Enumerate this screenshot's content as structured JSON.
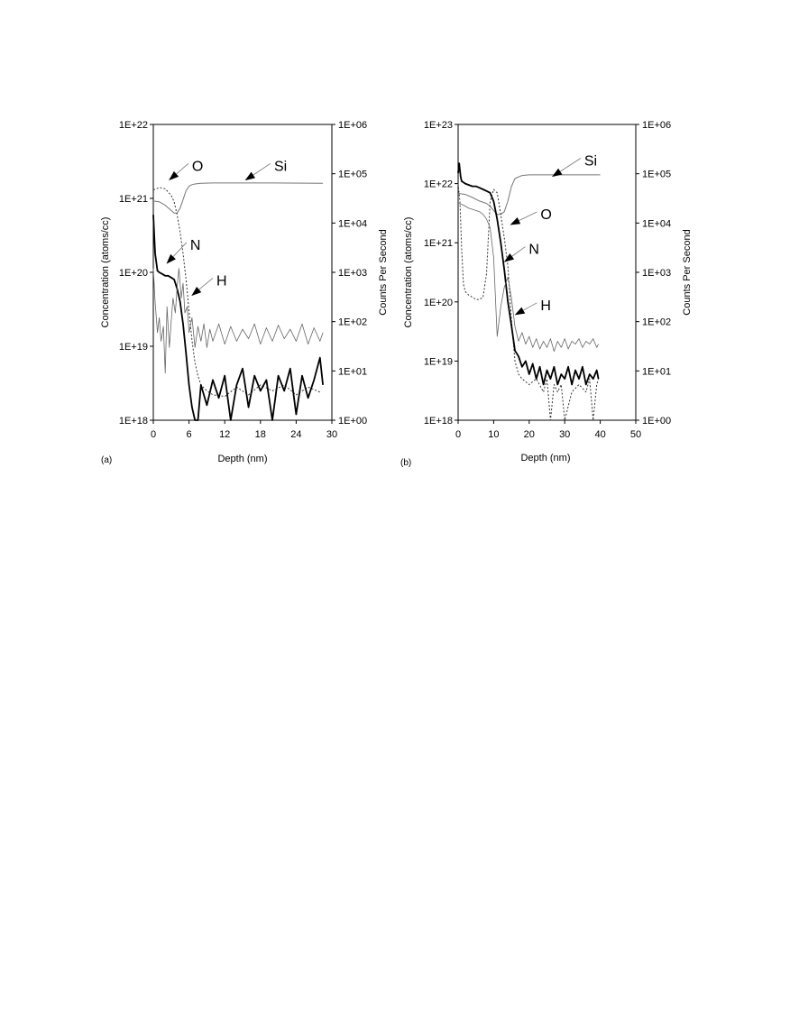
{
  "chart_data": [
    {
      "type": "line",
      "panel_label": "(a)",
      "xlabel": "Depth (nm)",
      "ylabel": "Concentration (atoms/cc)",
      "y2label": "Counts Per Second",
      "xlim": [
        0,
        30
      ],
      "x_ticks": [
        0,
        6,
        12,
        18,
        24,
        30
      ],
      "x_tick_labels": [
        "0",
        "6",
        "12",
        "18",
        "24",
        "30"
      ],
      "y_scale": "log",
      "ylim": [
        1e+18,
        1e+22
      ],
      "y_ticks": [
        1e+18,
        1e+19,
        1e+20,
        1e+21,
        1e+22
      ],
      "y_tick_labels": [
        "1E+18",
        "1E+19",
        "1E+20",
        "1E+21",
        "1E+22"
      ],
      "y2_scale": "log",
      "y2lim": [
        1,
        1000000
      ],
      "y2_ticks": [
        1,
        10,
        100,
        1000,
        10000,
        100000,
        1000000
      ],
      "y2_tick_labels": [
        "1E+00",
        "1E+01",
        "1E+02",
        "1E+03",
        "1E+04",
        "1E+05",
        "1E+06"
      ],
      "grid": false,
      "annotations": [
        {
          "text": "O",
          "x": 6.5,
          "y": 2.8e+21,
          "arrow_x": 2.6,
          "arrow_y": 1.75e+21
        },
        {
          "text": "Si",
          "x": 20.3,
          "y": 2.8e+21,
          "arrow_x": 15.4,
          "arrow_y": 1.75e+21
        },
        {
          "text": "N",
          "x": 6.2,
          "y": 2.4e+20,
          "arrow_x": 2.2,
          "arrow_y": 1.3e+20
        },
        {
          "text": "H",
          "x": 10.6,
          "y": 7.9e+19,
          "arrow_x": 6.4,
          "arrow_y": 4.8e+19
        }
      ],
      "series": [
        {
          "name": "Si",
          "axis": "right",
          "style": "solid",
          "width": 1.0,
          "color": "#777777",
          "x": [
            0,
            1,
            2,
            3,
            3.5,
            4,
            4.5,
            5,
            5.5,
            6,
            6.5,
            7,
            8,
            10,
            14,
            20,
            28.5
          ],
          "y": [
            28000,
            27000,
            23000,
            18000,
            16000,
            16000,
            20000,
            30000,
            45000,
            56000,
            60000,
            62000,
            64000,
            65000,
            65000,
            65000,
            64000
          ]
        },
        {
          "name": "O",
          "axis": "left",
          "style": "dotted",
          "width": 1.0,
          "color": "#333333",
          "x": [
            0,
            1,
            2,
            3,
            3.5,
            4,
            4.5,
            5,
            5.5,
            6,
            6.5,
            7,
            7.5,
            8,
            9,
            10,
            12,
            14,
            16,
            18,
            20,
            22,
            24,
            26,
            28
          ],
          "y": [
            1.3e+21,
            1.4e+21,
            1.35e+21,
            1.1e+21,
            9e+20,
            6e+20,
            3.5e+20,
            1.8e+20,
            8e+19,
            3e+19,
            1.2e+19,
            6e+18,
            4e+18,
            3e+18,
            2.5e+18,
            2.2e+18,
            2.1e+18,
            2.8e+18,
            2.2e+18,
            3e+18,
            2.5e+18,
            3e+18,
            2.2e+18,
            2.8e+18,
            2.4e+18
          ]
        },
        {
          "name": "N",
          "axis": "left",
          "style": "solid",
          "width": 1.8,
          "color": "#000000",
          "x": [
            0,
            0.3,
            0.7,
            1,
            1.5,
            2,
            2.5,
            3,
            3.5,
            4,
            4.5,
            5,
            5.5,
            6,
            6.5,
            7,
            7.5,
            8,
            9,
            10,
            11,
            12,
            13,
            14,
            15,
            16,
            17,
            18,
            19,
            20,
            21,
            22,
            23,
            24,
            25,
            26,
            27,
            28,
            28.5
          ],
          "y": [
            6e+20,
            1.8e+20,
            1.05e+20,
            1e+20,
            9.5e+19,
            9e+19,
            9e+19,
            8.5e+19,
            8e+19,
            6e+19,
            4e+19,
            2e+19,
            8e+18,
            3e+18,
            1.5e+18,
            1e+18,
            1e+18,
            3e+18,
            1.6e+18,
            3.5e+18,
            2e+18,
            4e+18,
            1e+18,
            3e+18,
            5e+18,
            1.5e+18,
            4e+18,
            2.5e+18,
            3.5e+18,
            1e+18,
            4e+18,
            2.5e+18,
            5e+18,
            1.2e+18,
            4e+18,
            2e+18,
            3.5e+18,
            7e+18,
            3e+18
          ]
        },
        {
          "name": "H",
          "axis": "right",
          "style": "solid",
          "width": 0.8,
          "color": "#666666",
          "x": [
            0,
            0.3,
            0.7,
            1,
            1.3,
            1.7,
            2,
            2.3,
            2.7,
            3,
            3.3,
            3.7,
            4,
            4.3,
            4.7,
            5,
            5.3,
            5.7,
            6,
            6.5,
            7,
            7.5,
            8,
            8.5,
            9,
            9.5,
            10,
            11,
            12,
            13,
            14,
            15,
            16,
            17,
            18,
            19,
            20,
            21,
            22,
            23,
            24,
            25,
            26,
            27,
            28,
            28.5
          ],
          "y": [
            1200,
            250,
            60,
            120,
            40,
            80,
            9,
            200,
            30,
            100,
            300,
            150,
            500,
            1200,
            300,
            600,
            150,
            200,
            60,
            120,
            30,
            80,
            40,
            90,
            30,
            70,
            40,
            90,
            35,
            80,
            40,
            70,
            45,
            90,
            35,
            75,
            40,
            85,
            45,
            70,
            40,
            90,
            35,
            75,
            40,
            60
          ]
        }
      ]
    },
    {
      "type": "line",
      "panel_label": "(b)",
      "xlabel": "Depth (nm)",
      "ylabel": "Concentration (atoms/cc)",
      "y2label": "Counts Per Second",
      "xlim": [
        0,
        50
      ],
      "x_ticks": [
        0,
        10,
        20,
        30,
        40,
        50
      ],
      "x_tick_labels": [
        "0",
        "10",
        "20",
        "30",
        "40",
        "50"
      ],
      "y_scale": "log",
      "ylim": [
        1e+18,
        1e+23
      ],
      "y_ticks": [
        1e+18,
        1e+19,
        1e+20,
        1e+21,
        1e+22,
        1e+23
      ],
      "y_tick_labels": [
        "1E+18",
        "1E+19",
        "1E+20",
        "1E+21",
        "1E+22",
        "1E+23"
      ],
      "y2_scale": "log",
      "y2lim": [
        1,
        1000000
      ],
      "y2_ticks": [
        1,
        10,
        100,
        1000,
        10000,
        100000,
        1000000
      ],
      "y2_tick_labels": [
        "1E+00",
        "1E+01",
        "1E+02",
        "1E+03",
        "1E+04",
        "1E+05",
        "1E+06"
      ],
      "grid": false,
      "annotations": [
        {
          "text": "Si",
          "x": 35.5,
          "y": 2.5e+22,
          "arrow_x": 26.4,
          "arrow_y": 1.3e+22
        },
        {
          "text": "O",
          "x": 23.2,
          "y": 3.1e+21,
          "arrow_x": 14.6,
          "arrow_y": 2e+21
        },
        {
          "text": "N",
          "x": 19.9,
          "y": 8e+20,
          "arrow_x": 12.9,
          "arrow_y": 4.7e+20
        },
        {
          "text": "H",
          "x": 23.2,
          "y": 9e+19,
          "arrow_x": 15.9,
          "arrow_y": 6e+19
        }
      ],
      "series": [
        {
          "name": "Si",
          "axis": "right",
          "style": "solid",
          "width": 1.0,
          "color": "#777777",
          "x": [
            0,
            2,
            4,
            6,
            8,
            9,
            10,
            11,
            12,
            13,
            14,
            15,
            16,
            18,
            20,
            25,
            30,
            40
          ],
          "y": [
            40000,
            38000,
            33000,
            28000,
            25000,
            22000,
            18000,
            15000,
            15000,
            17000,
            28000,
            55000,
            80000,
            92000,
            95000,
            95000,
            95000,
            95000
          ]
        },
        {
          "name": "O",
          "axis": "left",
          "style": "dotted",
          "width": 1.0,
          "color": "#333333",
          "x": [
            0,
            0.5,
            1,
            1.5,
            2,
            3,
            4,
            5,
            6,
            7,
            8,
            9,
            10,
            11,
            12,
            13,
            14,
            15,
            16,
            17,
            18,
            20,
            22,
            24,
            25,
            26,
            27,
            28,
            29,
            30,
            32,
            34,
            36,
            37,
            38,
            39,
            39.5
          ],
          "y": [
            1e+22,
            5e+21,
            8e+20,
            2e+20,
            1.5e+20,
            1.3e+20,
            1.2e+20,
            1.1e+20,
            1.1e+20,
            1.2e+20,
            3e+20,
            5e+21,
            8e+21,
            7e+21,
            3e+21,
            1.2e+21,
            4e+20,
            5e+19,
            1e+19,
            6e+18,
            5e+18,
            4e+18,
            5e+18,
            3e+18,
            5e+18,
            1e+18,
            4e+18,
            3e+18,
            4e+18,
            1e+18,
            3e+18,
            4e+18,
            3e+18,
            5e+18,
            1e+18,
            4e+18,
            5e+18
          ]
        },
        {
          "name": "N",
          "axis": "left",
          "style": "solid",
          "width": 1.8,
          "color": "#000000",
          "x": [
            0,
            0.3,
            0.7,
            1,
            2,
            3,
            4,
            5,
            6,
            7,
            8,
            9,
            10,
            11,
            12,
            13,
            14,
            15,
            16,
            17,
            18,
            19,
            20,
            21,
            22,
            23,
            24,
            25,
            26,
            27,
            28,
            29,
            30,
            31,
            32,
            33,
            34,
            35,
            36,
            37,
            38,
            39,
            39.5
          ],
          "y": [
            1.5e+22,
            2.2e+22,
            1.3e+22,
            1.1e+22,
            1e+22,
            9.5e+21,
            9e+21,
            9e+21,
            8.5e+21,
            8e+21,
            7.5e+21,
            7e+21,
            5e+21,
            2.5e+21,
            1e+21,
            3.5e+20,
            1e+20,
            4e+19,
            1.5e+19,
            1.2e+19,
            8e+18,
            1e+19,
            6e+18,
            9e+18,
            5e+18,
            8e+18,
            4e+18,
            7e+18,
            5e+18,
            8e+18,
            4e+18,
            6e+18,
            5e+18,
            8e+18,
            4e+18,
            7e+18,
            5e+18,
            8e+18,
            4e+18,
            6e+18,
            5e+18,
            7e+18,
            5e+18
          ]
        },
        {
          "name": "H",
          "axis": "right",
          "style": "solid",
          "width": 0.8,
          "color": "#666666",
          "x": [
            0,
            1,
            2,
            3,
            4,
            5,
            6,
            7,
            8,
            9,
            10,
            10.5,
            11,
            11.5,
            12,
            13,
            14,
            15,
            16,
            17,
            18,
            19,
            20,
            21,
            22,
            23,
            24,
            25,
            26,
            27,
            28,
            29,
            30,
            31,
            32,
            33,
            34,
            35,
            36,
            37,
            38,
            39,
            39.5
          ],
          "y": [
            25000,
            24000,
            22000,
            20000,
            19000,
            18000,
            17000,
            15000,
            12000,
            8000,
            2000,
            300,
            50,
            100,
            200,
            500,
            800,
            300,
            80,
            40,
            60,
            35,
            50,
            30,
            45,
            28,
            40,
            30,
            45,
            25,
            40,
            30,
            45,
            28,
            40,
            35,
            45,
            30,
            40,
            35,
            45,
            30,
            35
          ]
        }
      ]
    }
  ]
}
